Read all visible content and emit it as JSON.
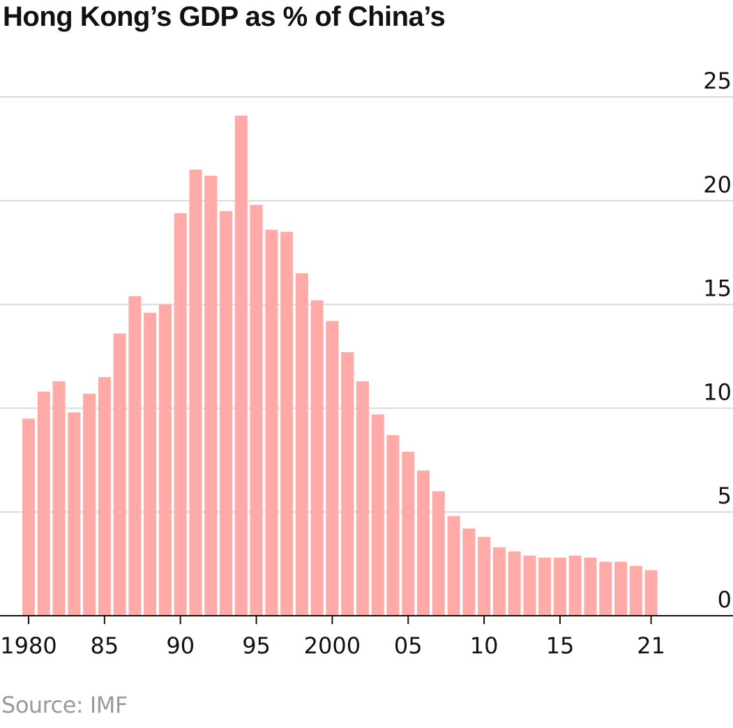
{
  "title": "Hong Kong’s GDP as % of China’s",
  "source": "Source: IMF",
  "colors": {
    "bar": "#ffaaa6",
    "grid": "#d9d9d9",
    "axis": "#111111"
  },
  "chart_data": {
    "type": "bar",
    "title": "Hong Kong’s GDP as % of China’s",
    "xlabel": "",
    "ylabel": "",
    "ylim": [
      0,
      25
    ],
    "grid": true,
    "y_ticks": [
      "0",
      "5",
      "10",
      "15",
      "20",
      "25"
    ],
    "x_tick_labels": [
      "1980",
      "85",
      "90",
      "95",
      "2000",
      "05",
      "10",
      "15",
      "21"
    ],
    "categories": [
      1980,
      1981,
      1982,
      1983,
      1984,
      1985,
      1986,
      1987,
      1988,
      1989,
      1990,
      1991,
      1992,
      1993,
      1994,
      1995,
      1996,
      1997,
      1998,
      1999,
      2000,
      2001,
      2002,
      2003,
      2004,
      2005,
      2006,
      2007,
      2008,
      2009,
      2010,
      2011,
      2012,
      2013,
      2014,
      2015,
      2016,
      2017,
      2018,
      2019,
      2020,
      2021
    ],
    "values": [
      9.5,
      10.8,
      11.3,
      9.8,
      10.7,
      11.5,
      13.6,
      15.4,
      14.6,
      15.0,
      19.4,
      21.5,
      21.2,
      19.5,
      24.1,
      19.8,
      18.6,
      18.5,
      16.5,
      15.2,
      14.2,
      12.7,
      11.3,
      9.7,
      8.7,
      7.9,
      7.0,
      6.0,
      4.8,
      4.2,
      3.8,
      3.3,
      3.1,
      2.9,
      2.8,
      2.8,
      2.9,
      2.8,
      2.6,
      2.6,
      2.4,
      2.2
    ]
  }
}
